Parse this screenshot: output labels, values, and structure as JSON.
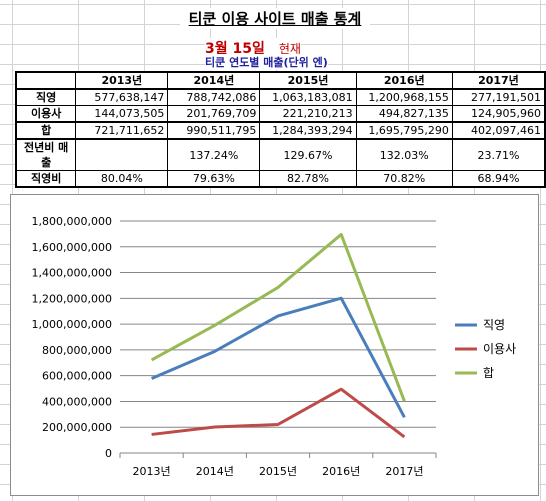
{
  "sheet": {
    "title": "티쿤 이용 사이트 매출 통계",
    "date": "3월 15일",
    "date_suffix": "현재",
    "subtitle": "티쿤 연도별 매출(단위 엔)"
  },
  "table": {
    "headers": [
      "",
      "2013년",
      "2014년",
      "2015년",
      "2016년",
      "2017년"
    ],
    "rows": [
      {
        "label": "직영",
        "values": [
          "577,638,147",
          "788,742,086",
          "1,063,183,081",
          "1,200,968,155",
          "277,191,501"
        ]
      },
      {
        "label": "이용사",
        "values": [
          "144,073,505",
          "201,769,709",
          "221,210,213",
          "494,827,135",
          "124,905,960"
        ]
      },
      {
        "label": "합",
        "values": [
          "721,711,652",
          "990,511,795",
          "1,284,393,294",
          "1,695,795,290",
          "402,097,461"
        ]
      },
      {
        "label": "전년비 매출",
        "values": [
          "",
          "137.24%",
          "129.67%",
          "132.03%",
          "23.71%"
        ]
      },
      {
        "label": "직영비",
        "values": [
          "80.04%",
          "79.63%",
          "82.78%",
          "70.82%",
          "68.94%"
        ]
      }
    ]
  },
  "chart_data": {
    "type": "line",
    "categories": [
      "2013년",
      "2014년",
      "2015년",
      "2016년",
      "2017년"
    ],
    "ylim": [
      0,
      1800000000
    ],
    "yticks": [
      "1,800,000,000",
      "1,600,000,000",
      "1,400,000,000",
      "1,200,000,000",
      "1,000,000,000",
      "800,000,000",
      "600,000,000",
      "400,000,000",
      "200,000,000",
      "0"
    ],
    "ytick_values": [
      1800000000,
      1600000000,
      1400000000,
      1200000000,
      1000000000,
      800000000,
      600000000,
      400000000,
      200000000,
      0
    ],
    "grid": true,
    "legend_position": "right",
    "series": [
      {
        "name": "직영",
        "color": "#4a7ebb",
        "values": [
          577638147,
          788742086,
          1063183081,
          1200968155,
          277191501
        ]
      },
      {
        "name": "이용사",
        "color": "#be4b48",
        "values": [
          144073505,
          201769709,
          221210213,
          494827135,
          124905960
        ]
      },
      {
        "name": "합",
        "color": "#98b954",
        "values": [
          721711652,
          990511795,
          1284393294,
          1695795290,
          402097461
        ]
      }
    ]
  }
}
